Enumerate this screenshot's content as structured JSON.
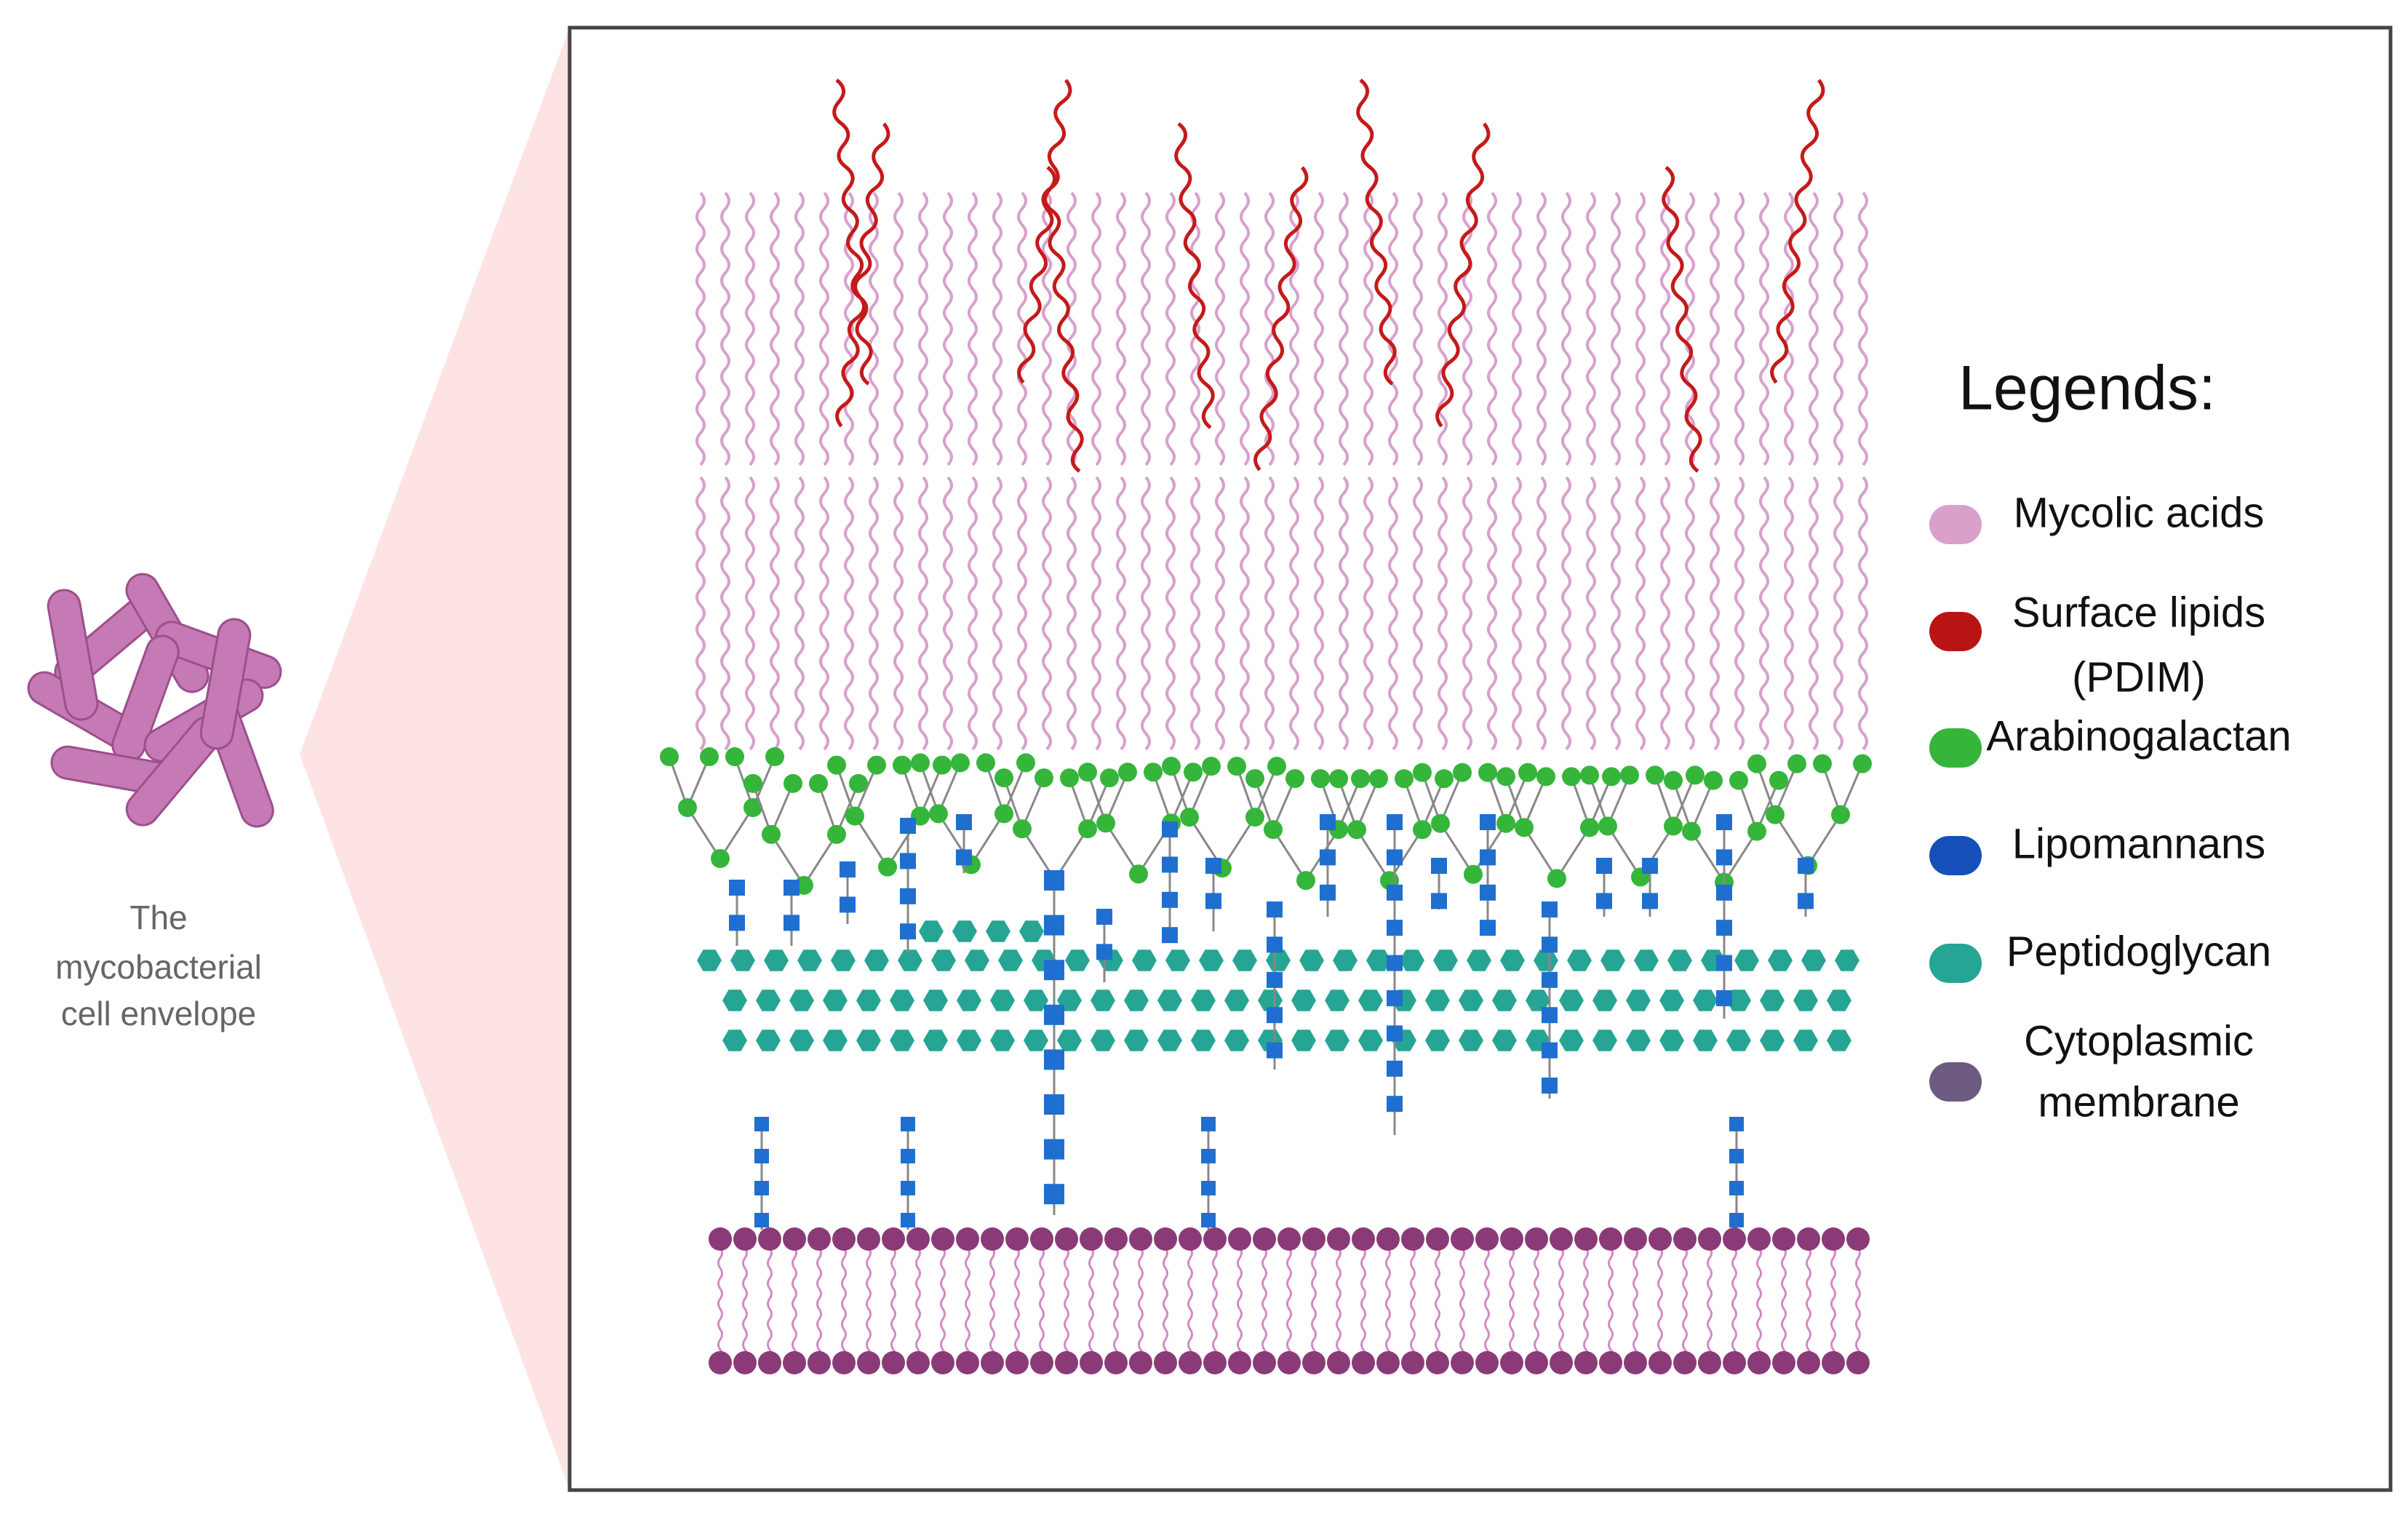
{
  "caption": {
    "lines": [
      "The",
      "mycobacterial",
      "cell envelope"
    ]
  },
  "legend": {
    "title": "Legends:",
    "items": [
      {
        "lines": [
          "Mycolic acids"
        ],
        "color": "#d9a0cc"
      },
      {
        "lines": [
          "Surface lipids",
          "(PDIM)"
        ],
        "color": "#b81414"
      },
      {
        "lines": [
          "Arabinogalactan"
        ],
        "color": "#35b53a"
      },
      {
        "lines": [
          "Lipomannans"
        ],
        "color": "#1450b8"
      },
      {
        "lines": [
          "Peptidoglycan"
        ],
        "color": "#26a594"
      },
      {
        "lines": [
          "Cytoplasmic",
          "membrane"
        ],
        "color": "#6d5a80"
      }
    ]
  }
}
